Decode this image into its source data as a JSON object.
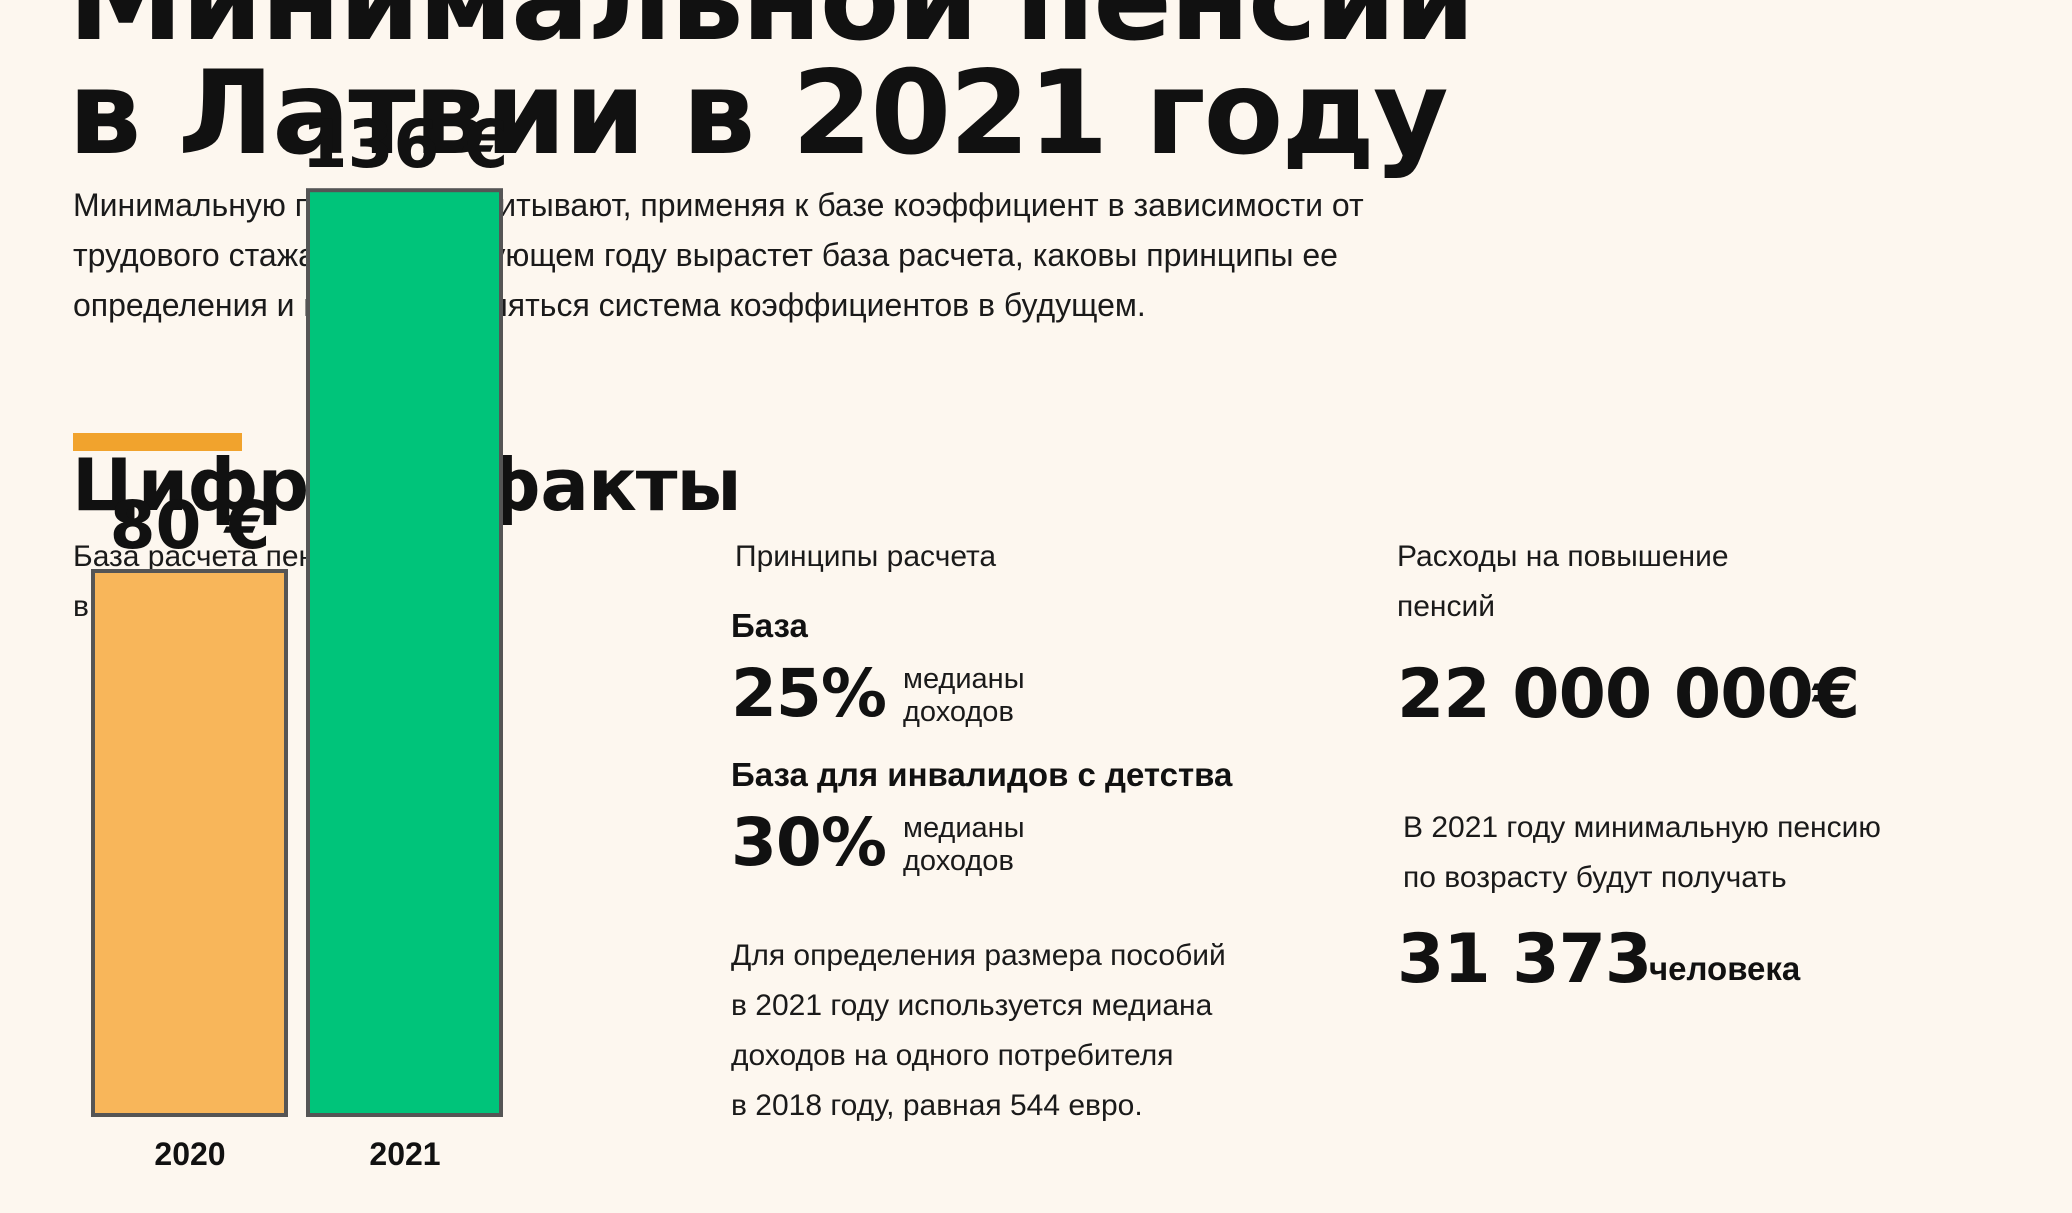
{
  "title": {
    "line1": "Минимальной пенсии",
    "line2": "в Латвии в 2021 году"
  },
  "intro": {
    "line1": "Минимальную пенсию рассчитывают, применяя к базе коэффициент в зависимости от",
    "line2": "трудового стажа. Как в следующем году вырастет база расчета, каковы принципы ее",
    "line3": "определения и как будет меняться система коэффициентов в будущем."
  },
  "section": {
    "title": "Цифры и факты",
    "accent_color": "#f1a32d"
  },
  "left_col": {
    "label_line1": "База расчета пенсий",
    "label_line2": "вырастет",
    "trend_icon": "trend-up-arrow-icon"
  },
  "chart_data": {
    "type": "bar",
    "categories": [
      "2020",
      "2021"
    ],
    "values": [
      80,
      136
    ],
    "value_labels": [
      "80 €",
      "136 €"
    ],
    "colors": [
      "#f8b65a",
      "#00c47a"
    ],
    "border_color": "#555555"
  },
  "middle_col": {
    "label": "Принципы расчета",
    "base_heading": "База",
    "base_pct": "25%",
    "base_note_line1": "медианы",
    "base_note_line2": "доходов",
    "disabled_heading": "База для инвалидов с детства",
    "disabled_pct": "30%",
    "disabled_note_line1": "медианы",
    "disabled_note_line2": "доходов",
    "para_line1": "Для определения размера пособий",
    "para_line2": "в 2021 году используется медиана",
    "para_line3": "доходов на одного потребителя",
    "para_line4": "в 2018 году, равная 544 евро."
  },
  "right_col": {
    "label_line1": "Расходы на повышение",
    "label_line2": "пенсий",
    "amount": "22 000 000€",
    "para_line1": "В 2021 году минимальную пенсию",
    "para_line2": "по возрасту будут получать",
    "count": "31 373",
    "count_unit": "человека"
  }
}
